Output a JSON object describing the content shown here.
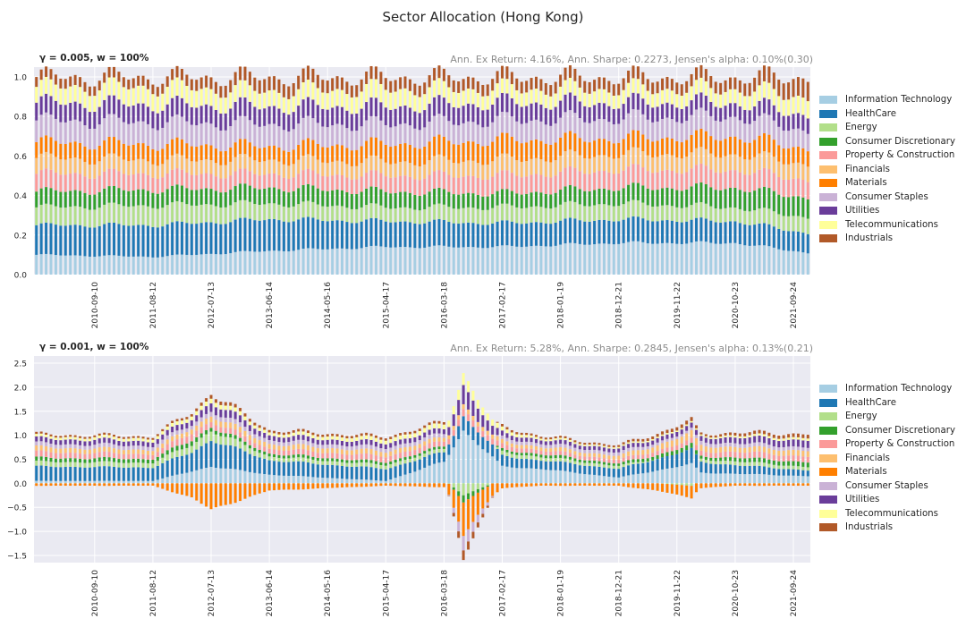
{
  "figure": {
    "title": "Sector Allocation (Hong Kong)"
  },
  "sectors": [
    {
      "name": "Information Technology",
      "color": "#a6cee3"
    },
    {
      "name": "HealthCare",
      "color": "#1f78b4"
    },
    {
      "name": "Energy",
      "color": "#b2df8a"
    },
    {
      "name": "Consumer Discretionary",
      "color": "#33a02c"
    },
    {
      "name": "Property & Construction",
      "color": "#fb9a99"
    },
    {
      "name": "Financials",
      "color": "#fdbf6f"
    },
    {
      "name": "Materials",
      "color": "#ff7f00"
    },
    {
      "name": "Consumer Staples",
      "color": "#cab2d6"
    },
    {
      "name": "Utilities",
      "color": "#6a3d9a"
    },
    {
      "name": "Telecommunications",
      "color": "#ffff99"
    },
    {
      "name": "Industrials",
      "color": "#b15928"
    }
  ],
  "chart_data": [
    {
      "type": "bar",
      "stacked": true,
      "title_left": "γ = 0.005, w = 100%",
      "title_right": "Ann. Ex Return: 4.16%, Ann. Sharpe: 0.2273, Jensen's alpha: 0.10%(0.30)",
      "ylim": [
        0,
        1.05
      ],
      "yticks": [
        0.0,
        0.2,
        0.4,
        0.6,
        0.8,
        1.0
      ],
      "ytick_labels": [
        "0.0",
        "0.2",
        "0.4",
        "0.6",
        "0.8",
        "1.0"
      ],
      "xtick_labels": [
        "2010-09-10",
        "2011-08-12",
        "2012-07-13",
        "2013-06-14",
        "2014-05-16",
        "2015-04-17",
        "2016-03-18",
        "2017-02-17",
        "2018-01-19",
        "2018-12-21",
        "2019-11-22",
        "2020-10-23",
        "2021-09-24"
      ],
      "legend_position": "right",
      "n_bars": 160,
      "anchors": [
        0,
        24,
        48,
        72,
        96,
        120,
        144,
        159
      ],
      "series": [
        {
          "name": "Information Technology",
          "values": [
            0.1,
            0.09,
            0.12,
            0.14,
            0.14,
            0.16,
            0.16,
            0.11
          ]
        },
        {
          "name": "HealthCare",
          "values": [
            0.15,
            0.16,
            0.16,
            0.13,
            0.12,
            0.12,
            0.11,
            0.1
          ]
        },
        {
          "name": "Energy",
          "values": [
            0.09,
            0.1,
            0.08,
            0.07,
            0.08,
            0.08,
            0.07,
            0.08
          ]
        },
        {
          "name": "Consumer Discretionary",
          "values": [
            0.08,
            0.08,
            0.08,
            0.08,
            0.07,
            0.08,
            0.1,
            0.1
          ]
        },
        {
          "name": "Property & Construction",
          "values": [
            0.09,
            0.08,
            0.07,
            0.08,
            0.09,
            0.09,
            0.09,
            0.09
          ]
        },
        {
          "name": "Financials",
          "values": [
            0.08,
            0.07,
            0.07,
            0.07,
            0.08,
            0.08,
            0.08,
            0.08
          ]
        },
        {
          "name": "Materials",
          "values": [
            0.08,
            0.08,
            0.07,
            0.09,
            0.1,
            0.08,
            0.09,
            0.08
          ]
        },
        {
          "name": "Consumer Staples",
          "values": [
            0.11,
            0.11,
            0.11,
            0.1,
            0.1,
            0.1,
            0.1,
            0.09
          ]
        },
        {
          "name": "Utilities",
          "values": [
            0.09,
            0.09,
            0.09,
            0.09,
            0.09,
            0.08,
            0.07,
            0.08
          ]
        },
        {
          "name": "Telecommunications",
          "values": [
            0.08,
            0.09,
            0.08,
            0.09,
            0.07,
            0.07,
            0.07,
            0.09
          ]
        },
        {
          "name": "Industrials",
          "values": [
            0.05,
            0.05,
            0.07,
            0.06,
            0.06,
            0.06,
            0.06,
            0.1
          ]
        }
      ]
    },
    {
      "type": "bar",
      "stacked": true,
      "title_left": "γ = 0.001, w = 100%",
      "title_right": "Ann. Ex Return: 5.28%, Ann. Sharpe: 0.2845, Jensen's alpha: 0.13%(0.21)",
      "ylim": [
        -1.65,
        2.65
      ],
      "yticks": [
        -1.5,
        -1.0,
        -0.5,
        0.0,
        0.5,
        1.0,
        1.5,
        2.0,
        2.5
      ],
      "ytick_labels": [
        "−1.5",
        "−1.0",
        "−0.5",
        "0.0",
        "0.5",
        "1.0",
        "1.5",
        "2.0",
        "2.5"
      ],
      "xtick_labels": [
        "2010-09-10",
        "2011-08-12",
        "2012-07-13",
        "2013-06-14",
        "2014-05-16",
        "2015-04-17",
        "2016-03-18",
        "2017-02-17",
        "2018-01-19",
        "2018-12-21",
        "2019-11-22",
        "2020-10-23",
        "2021-09-24"
      ],
      "legend_position": "right",
      "n_bars": 160,
      "anchors": [
        0,
        24,
        32,
        36,
        48,
        72,
        84,
        88,
        96,
        104,
        120,
        135,
        137,
        144,
        159
      ],
      "series": [
        {
          "name": "Information Technology",
          "values": [
            0.05,
            0.05,
            0.25,
            0.35,
            0.18,
            0.05,
            0.45,
            1.1,
            0.35,
            0.3,
            0.12,
            0.4,
            0.22,
            0.2,
            0.15
          ]
        },
        {
          "name": "HealthCare",
          "values": [
            0.3,
            0.28,
            0.4,
            0.55,
            0.3,
            0.25,
            0.2,
            0.3,
            0.22,
            0.18,
            0.18,
            0.3,
            0.22,
            0.18,
            0.12
          ]
        },
        {
          "name": "Energy",
          "values": [
            0.1,
            0.1,
            0.15,
            0.2,
            0.08,
            0.08,
            0.07,
            -0.25,
            0.08,
            0.07,
            0.06,
            -0.05,
            0.06,
            0.08,
            0.07
          ]
        },
        {
          "name": "Consumer Discretionary",
          "values": [
            0.08,
            0.08,
            0.1,
            0.08,
            0.06,
            0.06,
            0.05,
            -0.15,
            0.05,
            0.06,
            0.05,
            0.1,
            0.06,
            0.08,
            0.1
          ]
        },
        {
          "name": "Property & Construction",
          "values": [
            0.12,
            0.1,
            0.15,
            0.12,
            0.1,
            0.12,
            0.1,
            0.15,
            0.1,
            0.08,
            0.08,
            0.1,
            0.1,
            0.12,
            0.12
          ]
        },
        {
          "name": "Financials",
          "values": [
            0.1,
            0.09,
            0.1,
            0.12,
            0.1,
            0.1,
            0.08,
            0.1,
            0.08,
            0.07,
            0.08,
            0.15,
            0.12,
            0.1,
            0.12
          ]
        },
        {
          "name": "Materials",
          "values": [
            -0.05,
            -0.05,
            -0.3,
            -0.55,
            -0.15,
            -0.05,
            -0.08,
            -0.7,
            -0.1,
            -0.05,
            -0.05,
            -0.25,
            -0.1,
            -0.05,
            -0.05
          ]
        },
        {
          "name": "Consumer Staples",
          "values": [
            0.08,
            0.08,
            0.08,
            0.1,
            0.08,
            0.08,
            0.08,
            -0.3,
            0.07,
            0.07,
            0.07,
            0.05,
            0.08,
            0.08,
            0.07
          ]
        },
        {
          "name": "Utilities",
          "values": [
            0.1,
            0.1,
            0.12,
            0.18,
            0.1,
            0.1,
            0.1,
            0.4,
            0.1,
            0.08,
            0.08,
            0.1,
            0.1,
            0.12,
            0.15
          ]
        },
        {
          "name": "Telecommunications",
          "values": [
            0.05,
            0.06,
            0.08,
            0.1,
            0.06,
            0.08,
            0.1,
            0.25,
            0.08,
            0.04,
            0.03,
            0.03,
            0.03,
            0.04,
            0.05
          ]
        },
        {
          "name": "Industrials",
          "values": [
            0.04,
            0.04,
            0.05,
            0.08,
            0.05,
            0.05,
            0.05,
            -0.2,
            0.05,
            0.04,
            0.04,
            0.08,
            0.04,
            0.06,
            0.08
          ]
        }
      ]
    }
  ]
}
